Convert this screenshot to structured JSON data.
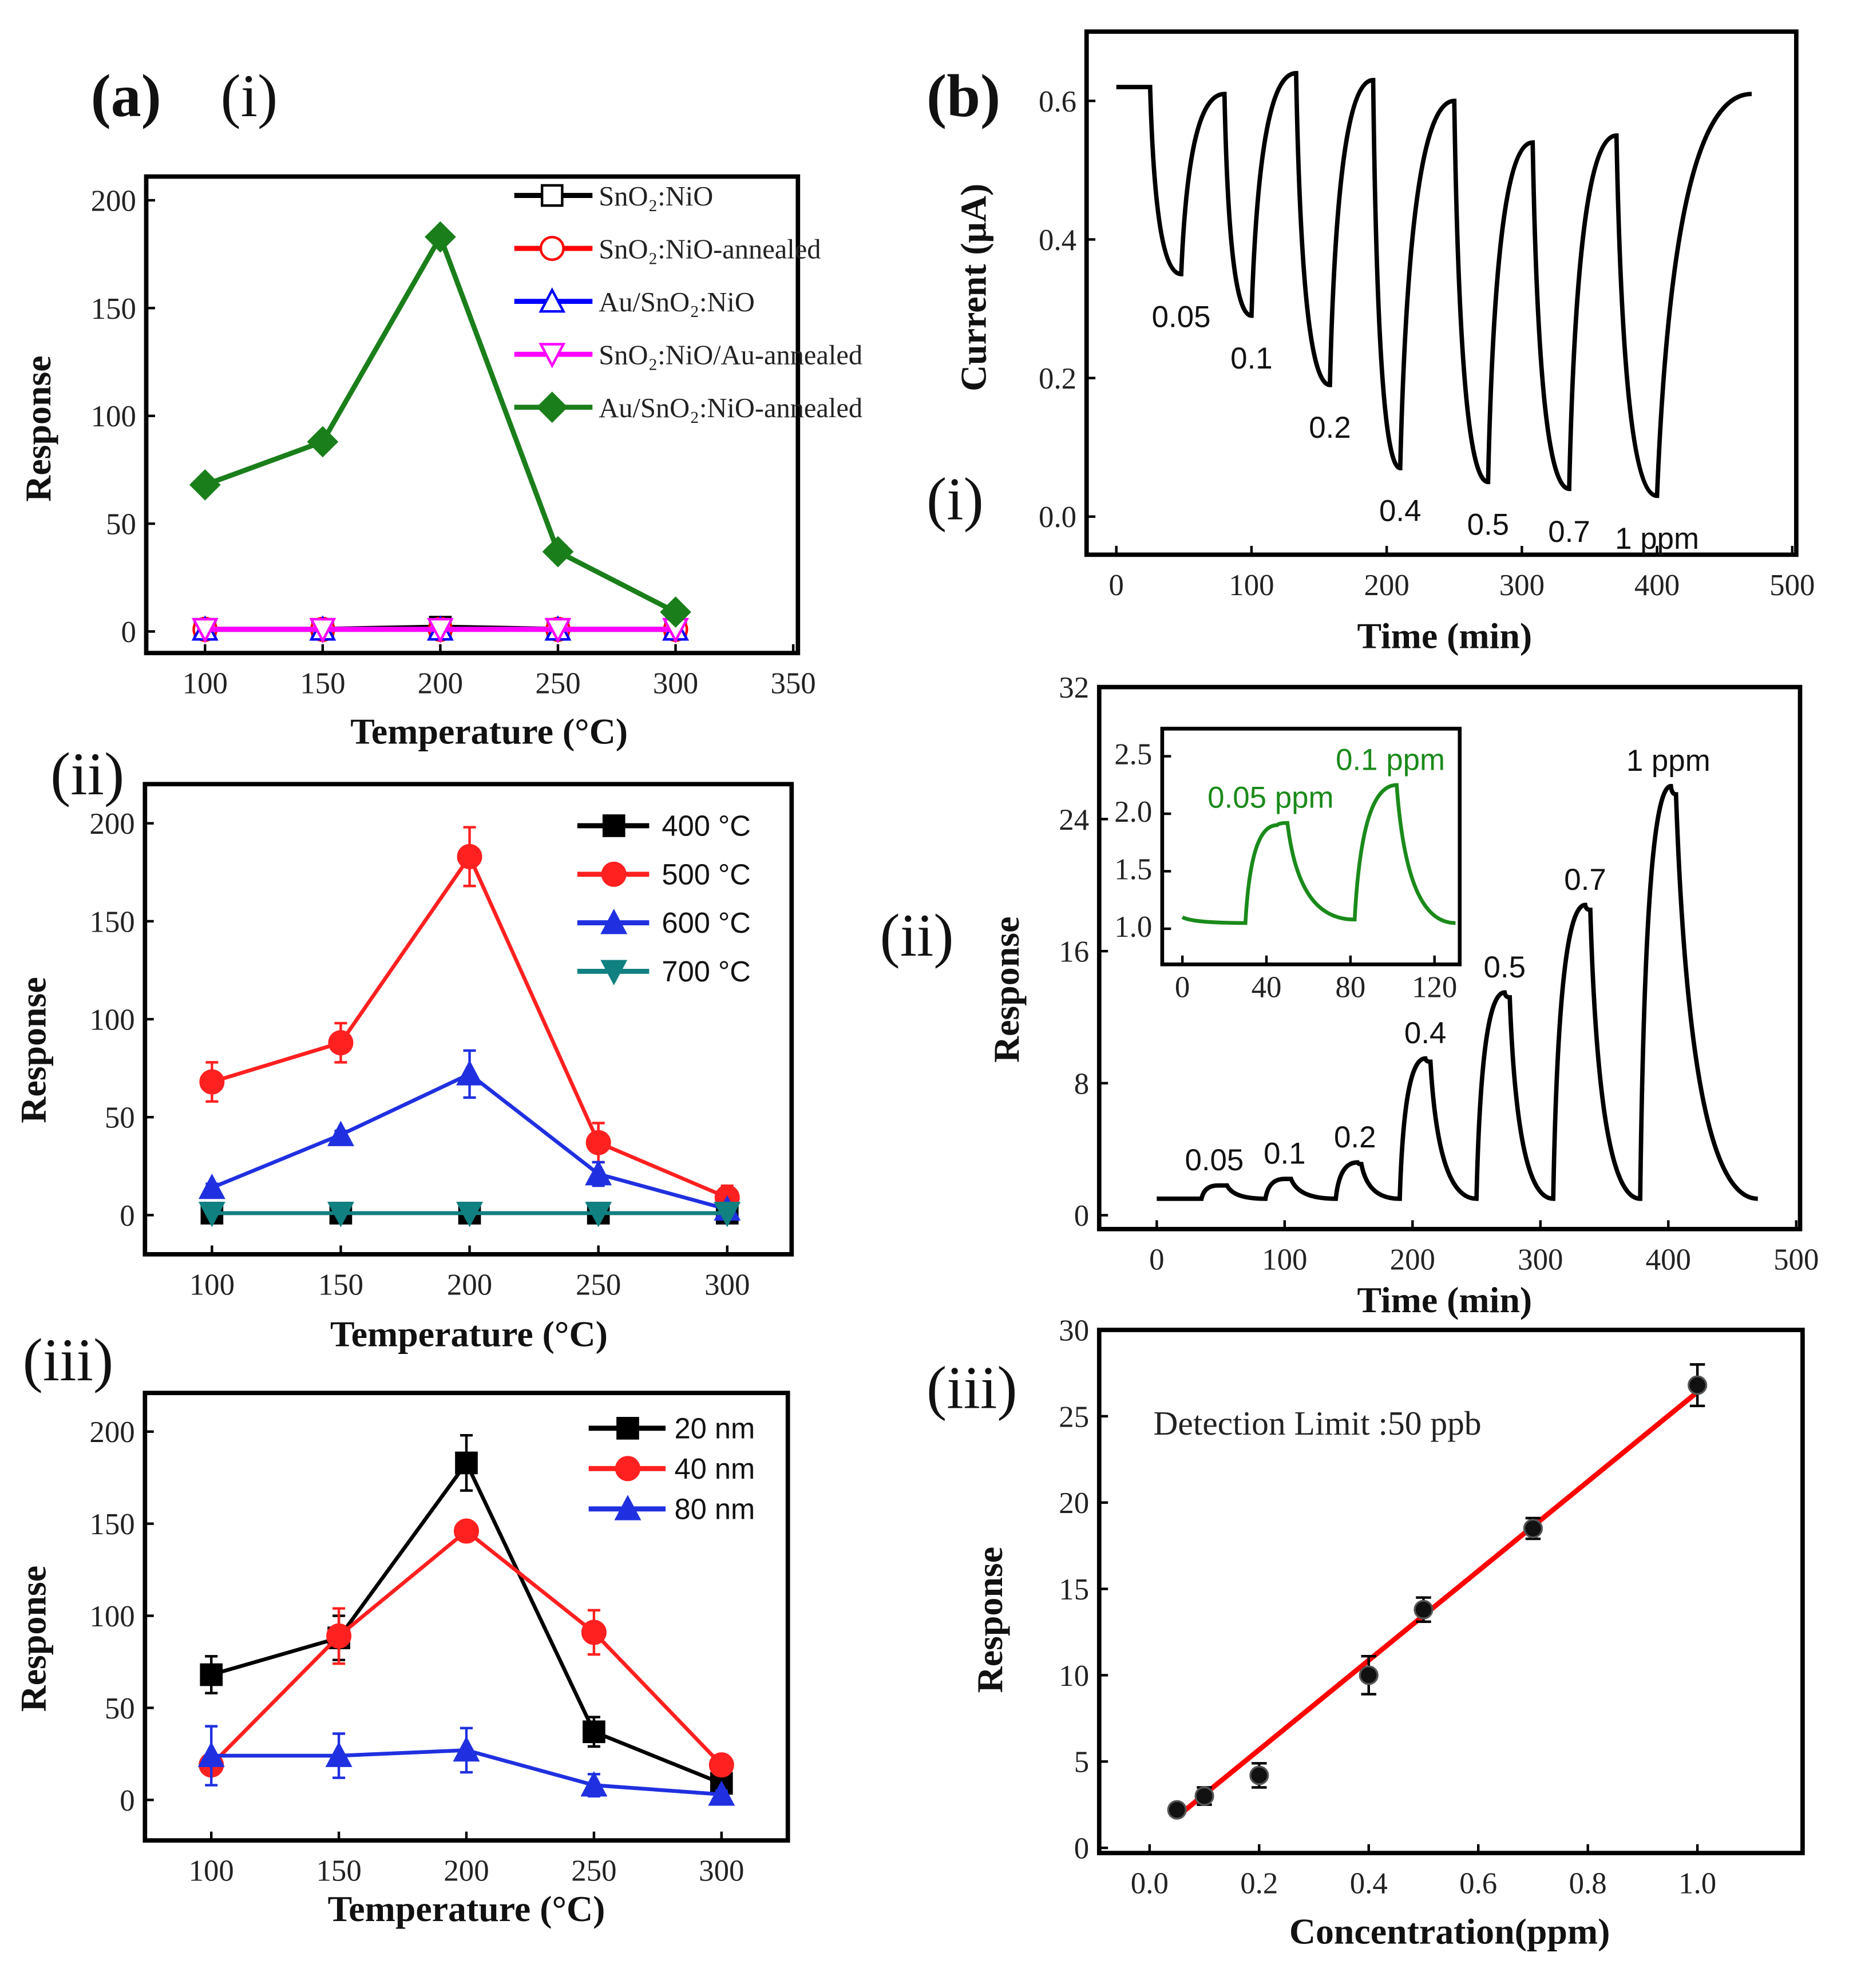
{
  "panel_labels": {
    "a": "(a)",
    "a_i": "(i)",
    "a_ii": "(ii)",
    "a_iii": "(iii)",
    "b": "(b)",
    "b_i": "(i)",
    "b_ii": "(ii)",
    "b_iii": "(iii)"
  },
  "chart_data": [
    {
      "id": "a_i",
      "type": "line",
      "xlabel": "Temperature (°C)",
      "ylabel": "Response",
      "xlim": [
        75,
        352
      ],
      "ylim": [
        -10,
        211
      ],
      "xticks": [
        100,
        150,
        200,
        250,
        300,
        350
      ],
      "yticks": [
        0,
        50,
        100,
        150,
        200
      ],
      "x": [
        100,
        150,
        200,
        250,
        300
      ],
      "series": [
        {
          "name": "SnO₂:NiO",
          "color": "#000000",
          "marker": "square",
          "values": [
            1,
            1,
            2,
            1,
            1
          ]
        },
        {
          "name": "SnO₂:NiO-annealed",
          "color": "#ff0000",
          "marker": "circle",
          "values": [
            1,
            1,
            1,
            1,
            1
          ]
        },
        {
          "name": "Au/SnO₂:NiO",
          "color": "#0000ff",
          "marker": "triangle-up",
          "values": [
            1,
            1,
            1,
            1,
            1
          ]
        },
        {
          "name": "SnO₂:NiO/Au-annealed",
          "color": "#ff00ff",
          "marker": "triangle-down",
          "values": [
            1,
            1,
            1,
            1,
            1
          ]
        },
        {
          "name": "Au/SnO₂:NiO-annealed",
          "color": "#1a7f1a",
          "marker": "diamond-filled",
          "values": [
            68,
            88,
            183,
            37,
            9
          ]
        }
      ]
    },
    {
      "id": "a_ii",
      "type": "line",
      "xlabel": "Temperature (°C)",
      "ylabel": "Response",
      "xlim": [
        74,
        325
      ],
      "ylim": [
        -20,
        220
      ],
      "xticks": [
        100,
        150,
        200,
        250,
        300
      ],
      "yticks": [
        0,
        50,
        100,
        150,
        200
      ],
      "x": [
        100,
        150,
        200,
        250,
        300
      ],
      "series": [
        {
          "name": "400 °C",
          "color": "#000000",
          "marker": "square-filled",
          "values": [
            1,
            1,
            1,
            1,
            1
          ],
          "errors": [
            0,
            0,
            0,
            0,
            0
          ]
        },
        {
          "name": "500 °C",
          "color": "#ff2020",
          "marker": "circle-filled",
          "values": [
            68,
            88,
            183,
            37,
            9
          ],
          "errors": [
            10,
            10,
            15,
            10,
            6
          ]
        },
        {
          "name": "600 °C",
          "color": "#2030e0",
          "marker": "triangle-up-filled",
          "values": [
            14,
            41,
            72,
            21,
            3
          ],
          "errors": [
            2,
            2,
            12,
            6,
            2
          ]
        },
        {
          "name": "700 °C",
          "color": "#108080",
          "marker": "triangle-down-filled",
          "values": [
            1,
            1,
            1,
            1,
            1
          ],
          "errors": [
            0,
            0,
            0,
            0,
            0
          ]
        }
      ]
    },
    {
      "id": "a_iii",
      "type": "line",
      "xlabel": "Temperature (°C)",
      "ylabel": "Response",
      "xlim": [
        74,
        326
      ],
      "ylim": [
        -22,
        221
      ],
      "xticks": [
        100,
        150,
        200,
        250,
        300
      ],
      "yticks": [
        0,
        50,
        100,
        150,
        200
      ],
      "x": [
        100,
        150,
        200,
        250,
        300
      ],
      "series": [
        {
          "name": "20 nm",
          "color": "#000000",
          "marker": "square-filled",
          "values": [
            68,
            88,
            183,
            37,
            9
          ],
          "errors": [
            10,
            12,
            15,
            8,
            6
          ]
        },
        {
          "name": "40 nm",
          "color": "#ff2020",
          "marker": "circle-filled",
          "values": [
            19,
            89,
            146,
            91,
            19
          ],
          "errors": [
            4,
            15,
            5,
            12,
            3
          ]
        },
        {
          "name": "80 nm",
          "color": "#2030e0",
          "marker": "triangle-up-filled",
          "values": [
            24,
            24,
            27,
            8,
            3
          ],
          "errors": [
            16,
            12,
            12,
            6,
            2
          ]
        }
      ]
    },
    {
      "id": "b_i",
      "type": "line",
      "xlabel": "Time (min)",
      "ylabel": "Current (μA)",
      "xlim": [
        -22,
        503
      ],
      "ylim": [
        -0.055,
        0.7
      ],
      "xticks": [
        0,
        100,
        200,
        300,
        400,
        500
      ],
      "yticks": [
        0.0,
        0.2,
        0.4,
        0.6
      ],
      "ytick_format": 1,
      "series": [
        {
          "name": "Current",
          "color": "#000000",
          "points": [
            [
              0,
              0.62
            ],
            [
              25,
              0.62
            ],
            [
              48,
              0.35
            ],
            [
              80,
              0.61
            ],
            [
              100,
              0.29
            ],
            [
              133,
              0.64
            ],
            [
              158,
              0.19
            ],
            [
              190,
              0.63
            ],
            [
              210,
              0.07
            ],
            [
              250,
              0.6
            ],
            [
              275,
              0.05
            ],
            [
              308,
              0.54
            ],
            [
              335,
              0.04
            ],
            [
              370,
              0.55
            ],
            [
              400,
              0.03
            ],
            [
              470,
              0.61
            ]
          ]
        }
      ],
      "annotations": [
        {
          "text": "0.05",
          "x": 48,
          "y": 0.35
        },
        {
          "text": "0.1",
          "x": 100,
          "y": 0.29
        },
        {
          "text": "0.2",
          "x": 158,
          "y": 0.19
        },
        {
          "text": "0.4",
          "x": 210,
          "y": 0.07
        },
        {
          "text": "0.5",
          "x": 275,
          "y": 0.05
        },
        {
          "text": "0.7",
          "x": 335,
          "y": 0.04
        },
        {
          "text": "1 ppm",
          "x": 400,
          "y": 0.03
        }
      ]
    },
    {
      "id": "b_ii",
      "type": "line",
      "xlabel": "Time (min)",
      "ylabel": "Response",
      "xlim": [
        -45,
        503
      ],
      "ylim": [
        -0.84,
        32
      ],
      "xticks": [
        0,
        100,
        200,
        300,
        400,
        500
      ],
      "yticks": [
        0,
        8,
        16,
        24,
        32
      ],
      "series": [
        {
          "name": "Response",
          "color": "#000000",
          "points": [
            [
              0,
              1
            ],
            [
              35,
              1
            ],
            [
              48,
              1.8
            ],
            [
              55,
              1.8
            ],
            [
              85,
              1
            ],
            [
              100,
              2.2
            ],
            [
              105,
              2.2
            ],
            [
              140,
              1
            ],
            [
              157,
              3.2
            ],
            [
              160,
              3.1
            ],
            [
              190,
              1
            ],
            [
              210,
              9.5
            ],
            [
              214,
              9.3
            ],
            [
              250,
              1
            ],
            [
              272,
              13.5
            ],
            [
              276,
              13.2
            ],
            [
              310,
              1
            ],
            [
              335,
              18.8
            ],
            [
              339,
              18.5
            ],
            [
              378,
              1
            ],
            [
              402,
              26
            ],
            [
              406,
              25.5
            ],
            [
              470,
              1
            ]
          ]
        }
      ],
      "annotations": [
        {
          "text": "0.05",
          "x": 45,
          "y": 1.8
        },
        {
          "text": "0.1",
          "x": 100,
          "y": 2.2
        },
        {
          "text": "0.2",
          "x": 155,
          "y": 3.2
        },
        {
          "text": "0.4",
          "x": 210,
          "y": 9.5
        },
        {
          "text": "0.5",
          "x": 272,
          "y": 13.5
        },
        {
          "text": "0.7",
          "x": 335,
          "y": 18.8
        },
        {
          "text": "1 ppm",
          "x": 400,
          "y": 26
        }
      ],
      "inset": {
        "xlim": [
          -9.6,
          132
        ],
        "ylim": [
          0.69,
          2.74
        ],
        "xticks": [
          0,
          40,
          80,
          120
        ],
        "yticks": [
          1.0,
          1.5,
          2.0,
          2.5
        ],
        "ytick_format": 1,
        "color": "#1a8a1a",
        "points": [
          [
            0,
            1.1
          ],
          [
            30,
            1.05
          ],
          [
            45,
            1.9
          ],
          [
            50,
            1.92
          ],
          [
            82,
            1.08
          ],
          [
            102,
            2.25
          ],
          [
            130,
            1.05
          ]
        ],
        "annotations": [
          {
            "text": "0.05 ppm",
            "x": 45,
            "y": 1.92
          },
          {
            "text": "0.1 ppm",
            "x": 102,
            "y": 2.25
          }
        ]
      }
    },
    {
      "id": "b_iii",
      "type": "scatter",
      "xlabel": "Concentration(ppm)",
      "ylabel": "Response",
      "xlim": [
        -0.092,
        1.192
      ],
      "ylim": [
        -0.3,
        30
      ],
      "xticks": [
        0.0,
        0.2,
        0.4,
        0.6,
        0.8,
        1.0
      ],
      "yticks": [
        0,
        5,
        10,
        15,
        20,
        25,
        30
      ],
      "xtick_format": 1,
      "x": [
        0.05,
        0.1,
        0.2,
        0.4,
        0.5,
        0.7,
        1.0
      ],
      "values": [
        2.2,
        3.0,
        4.2,
        10.0,
        13.8,
        18.5,
        26.8
      ],
      "errors": [
        0.3,
        0.5,
        0.7,
        1.1,
        0.7,
        0.6,
        1.2
      ],
      "fit": {
        "color": "#ff0000",
        "x": [
          0.05,
          1.0
        ],
        "y": [
          1.8,
          26.4
        ]
      },
      "annotation": "Detection Limit :50 ppb"
    }
  ]
}
